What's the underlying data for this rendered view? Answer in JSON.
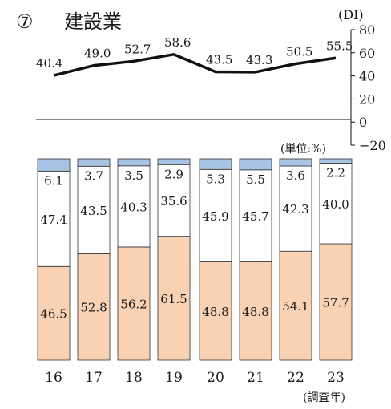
{
  "title": {
    "number": "⑦",
    "text": "建設業"
  },
  "line_chart": {
    "unit": "(DI)"
  },
  "bar_chart": {
    "unit": "(単位:%)",
    "x_axis_title": "(調査年)"
  },
  "colors": {
    "top_segment": "#a8c4e4",
    "middle_segment": "#ffffff",
    "bottom_segment": "#f9d2b4",
    "line": "#111111",
    "bar_border": "#333333"
  },
  "chart_data": [
    {
      "type": "line",
      "title": "",
      "categories": [
        "16",
        "17",
        "18",
        "19",
        "20",
        "21",
        "22",
        "23"
      ],
      "values": [
        40.4,
        49.0,
        52.7,
        58.6,
        43.5,
        43.3,
        50.5,
        55.5
      ],
      "value_labels": [
        "40.4",
        "49.0",
        "52.7",
        "58.6",
        "43.5",
        "43.3",
        "50.5",
        "55.5"
      ],
      "ylabel": "(DI)",
      "ylim": [
        -20,
        80
      ],
      "yticks": [
        -20,
        0,
        20,
        40,
        60,
        80
      ],
      "ytick_labels": [
        "−20",
        "0",
        "20",
        "40",
        "60",
        "80"
      ],
      "reference_line": 0,
      "grid": false,
      "axis_side": "right"
    },
    {
      "type": "bar",
      "stacked": true,
      "categories": [
        "16",
        "17",
        "18",
        "19",
        "20",
        "21",
        "22",
        "23"
      ],
      "xlabel": "(調査年)",
      "ylabel": "(単位:%)",
      "series": [
        {
          "values": [
            46.5,
            52.8,
            56.2,
            61.5,
            48.8,
            48.8,
            54.1,
            57.7
          ],
          "labels": [
            "46.5",
            "52.8",
            "56.2",
            "61.5",
            "48.8",
            "48.8",
            "54.1",
            "57.7"
          ]
        },
        {
          "values": [
            47.4,
            43.5,
            40.3,
            35.6,
            45.9,
            45.7,
            42.3,
            40.0
          ],
          "labels": [
            "47.4",
            "43.5",
            "40.3",
            "35.6",
            "45.9",
            "45.7",
            "42.3",
            "40.0"
          ]
        },
        {
          "values": [
            6.1,
            3.7,
            3.5,
            2.9,
            5.3,
            5.5,
            3.6,
            2.2
          ],
          "labels": [
            "6.1",
            "3.7",
            "3.5",
            "2.9",
            "5.3",
            "5.5",
            "3.6",
            "2.2"
          ]
        }
      ],
      "ylim": [
        0,
        100
      ],
      "legend": "none"
    }
  ]
}
